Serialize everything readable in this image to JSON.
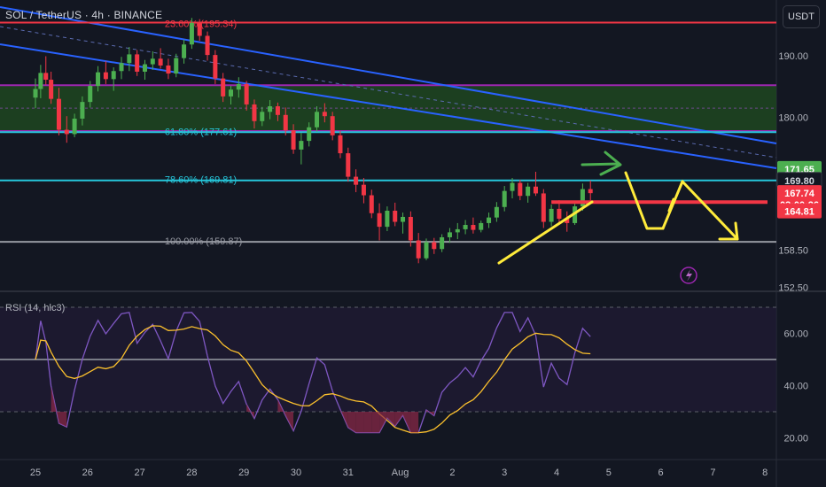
{
  "header": {
    "title": "SOL / TetherUS · 4h · BINANCE",
    "currency_button": "USDT"
  },
  "rsi": {
    "title": "RSI (14, hlc3)"
  },
  "colors": {
    "background": "#131722",
    "up": "#4caf50",
    "down": "#f23645",
    "trendline": "#2962ff",
    "zone_fill": "#1e4620",
    "zone_border": "#9c27b0",
    "fib_cyan": "#26c6da",
    "fib_gray": "#9598a1",
    "fib_red": "#f23645",
    "arrow_yellow": "#ffeb3b",
    "arrow_green": "#4caf50",
    "rsi_line": "#7e57c2",
    "rsi_ma": "#fbc02d"
  },
  "chart_data": [
    {
      "type": "candlestick",
      "name": "price",
      "x_ticks": [
        "25",
        "26",
        "27",
        "28",
        "29",
        "30",
        "31",
        "Aug",
        "2",
        "3",
        "4",
        "5",
        "6",
        "7",
        "8"
      ],
      "y_ticks": [
        152.5,
        158.5,
        180.0,
        190.0
      ],
      "ylim": [
        152.0,
        199.0
      ],
      "fib_levels": [
        {
          "label": "23.60% (195.34)",
          "value": 195.34,
          "color": "#f23645"
        },
        {
          "label": "61.80% (177.61)",
          "value": 177.61,
          "color": "#26c6da"
        },
        {
          "label": "78.60% (169.81)",
          "value": 169.81,
          "color": "#26c6da"
        },
        {
          "label": "100.00% (159.87)",
          "value": 159.87,
          "color": "#9598a1"
        }
      ],
      "zone": {
        "from": 177.8,
        "to": 185.2
      },
      "price_tags": [
        {
          "text": "171.65",
          "value": 171.65,
          "color": "#4caf50"
        },
        {
          "text": "169.80",
          "value": 169.8,
          "color": "#131722",
          "text_color": "#d1d4dc"
        },
        {
          "text": "167.74",
          "value": 167.74,
          "color": "#f23645"
        },
        {
          "text": "03:00:26",
          "value": 165.9,
          "color": "#f23645"
        },
        {
          "text": "164.81",
          "value": 164.81,
          "color": "#f23645"
        }
      ],
      "candles": [
        [
          0.0,
          183.2,
          186.3,
          181.5,
          184.6
        ],
        [
          0.1,
          184.6,
          188.5,
          183.1,
          187.2
        ],
        [
          0.2,
          187.2,
          189.9,
          185.3,
          186.1
        ],
        [
          0.3,
          186.1,
          187.4,
          182.2,
          183.0
        ],
        [
          0.45,
          183.0,
          184.8,
          177.1,
          178.0
        ],
        [
          0.6,
          178.0,
          180.2,
          175.9,
          177.3
        ],
        [
          0.75,
          177.3,
          180.6,
          176.8,
          179.8
        ],
        [
          0.9,
          179.8,
          183.4,
          178.7,
          182.5
        ],
        [
          1.05,
          182.5,
          185.9,
          181.6,
          185.1
        ],
        [
          1.2,
          185.1,
          188.3,
          184.2,
          187.3
        ],
        [
          1.35,
          187.3,
          189.1,
          185.4,
          186.2
        ],
        [
          1.5,
          186.2,
          188.1,
          184.3,
          187.5
        ],
        [
          1.65,
          187.5,
          189.8,
          186.2,
          188.8
        ],
        [
          1.8,
          188.8,
          191.4,
          187.5,
          190.2
        ],
        [
          1.95,
          190.2,
          190.9,
          186.7,
          187.4
        ],
        [
          2.1,
          187.4,
          189.3,
          186.1,
          188.6
        ],
        [
          2.25,
          188.6,
          190.7,
          187.7,
          189.5
        ],
        [
          2.4,
          189.5,
          191.2,
          187.9,
          188.4
        ],
        [
          2.55,
          188.4,
          189.5,
          186.2,
          187.1
        ],
        [
          2.7,
          187.1,
          190.3,
          186.5,
          189.6
        ],
        [
          2.85,
          189.6,
          192.6,
          188.7,
          191.8
        ],
        [
          3.0,
          191.8,
          196.1,
          191.1,
          195.3
        ],
        [
          3.15,
          195.3,
          195.9,
          192.4,
          193.2
        ],
        [
          3.3,
          193.2,
          193.9,
          189.2,
          190.1
        ],
        [
          3.45,
          190.1,
          190.9,
          185.4,
          186.3
        ],
        [
          3.6,
          186.3,
          187.2,
          182.5,
          183.4
        ],
        [
          3.75,
          183.4,
          185.1,
          182.1,
          184.5
        ],
        [
          3.9,
          184.5,
          186.5,
          183.2,
          185.4
        ],
        [
          4.05,
          185.4,
          185.9,
          181.1,
          182.1
        ],
        [
          4.2,
          182.1,
          182.9,
          178.2,
          179.4
        ],
        [
          4.35,
          179.4,
          181.7,
          178.6,
          180.9
        ],
        [
          4.5,
          180.9,
          182.8,
          179.7,
          181.8
        ],
        [
          4.65,
          181.8,
          182.4,
          179.4,
          180.4
        ],
        [
          4.8,
          180.4,
          181.6,
          177.1,
          177.9
        ],
        [
          4.95,
          177.9,
          178.9,
          174.1,
          174.8
        ],
        [
          5.1,
          174.8,
          177.5,
          172.4,
          176.2
        ],
        [
          5.25,
          176.2,
          179.2,
          175.3,
          178.4
        ],
        [
          5.4,
          178.4,
          181.8,
          177.7,
          180.9
        ],
        [
          5.55,
          180.9,
          182.3,
          179.2,
          180.2
        ],
        [
          5.7,
          180.2,
          180.9,
          176.3,
          177.1
        ],
        [
          5.85,
          177.1,
          177.8,
          173.4,
          174.2
        ],
        [
          6.0,
          174.2,
          175.1,
          169.6,
          170.4
        ],
        [
          6.15,
          170.4,
          171.6,
          167.9,
          169.1
        ],
        [
          6.3,
          169.1,
          170.2,
          166.1,
          167.4
        ],
        [
          6.45,
          167.4,
          168.3,
          163.7,
          164.5
        ],
        [
          6.6,
          164.5,
          166.1,
          160.1,
          162.3
        ],
        [
          6.75,
          162.3,
          165.6,
          161.6,
          164.9
        ],
        [
          6.9,
          164.9,
          166.2,
          162.4,
          163.1
        ],
        [
          7.05,
          163.1,
          164.6,
          161.2,
          163.9
        ],
        [
          7.2,
          163.9,
          164.8,
          159.1,
          160.1
        ],
        [
          7.35,
          160.1,
          161.3,
          156.4,
          157.2
        ],
        [
          7.5,
          157.2,
          160.4,
          156.9,
          159.8
        ],
        [
          7.65,
          159.8,
          160.5,
          157.9,
          158.7
        ],
        [
          7.8,
          158.7,
          161.1,
          158.2,
          160.6
        ],
        [
          7.95,
          160.6,
          162.1,
          159.7,
          161.4
        ],
        [
          8.1,
          161.4,
          162.9,
          160.3,
          161.9
        ],
        [
          8.25,
          161.9,
          163.4,
          161.1,
          162.6
        ],
        [
          8.4,
          162.6,
          163.8,
          161.2,
          161.8
        ],
        [
          8.55,
          161.8,
          163.3,
          161.4,
          162.9
        ],
        [
          8.7,
          162.9,
          164.6,
          162.1,
          163.8
        ],
        [
          8.85,
          163.8,
          166.3,
          163.1,
          165.5
        ],
        [
          9.0,
          165.5,
          168.9,
          164.8,
          168.1
        ],
        [
          9.15,
          168.1,
          170.2,
          166.9,
          169.4
        ],
        [
          9.3,
          169.4,
          169.9,
          166.6,
          167.3
        ],
        [
          9.45,
          167.3,
          169.4,
          166.2,
          168.8
        ],
        [
          9.6,
          168.8,
          171.2,
          167.3,
          167.7
        ],
        [
          9.75,
          167.7,
          168.4,
          162.1,
          163.1
        ],
        [
          9.9,
          163.1,
          165.9,
          162.4,
          165.2
        ],
        [
          10.05,
          165.2,
          166.6,
          162.6,
          163.6
        ],
        [
          10.2,
          163.6,
          164.8,
          161.5,
          162.9
        ],
        [
          10.35,
          162.9,
          166.3,
          162.6,
          165.6
        ],
        [
          10.5,
          165.6,
          169.3,
          164.9,
          168.4
        ],
        [
          10.65,
          168.4,
          169.8,
          166.4,
          167.74
        ]
      ]
    },
    {
      "type": "line",
      "name": "rsi",
      "y_ticks": [
        20.0,
        40.0,
        60.0
      ],
      "ylim": [
        15,
        70
      ],
      "bands": [
        30,
        50,
        70
      ]
    }
  ]
}
